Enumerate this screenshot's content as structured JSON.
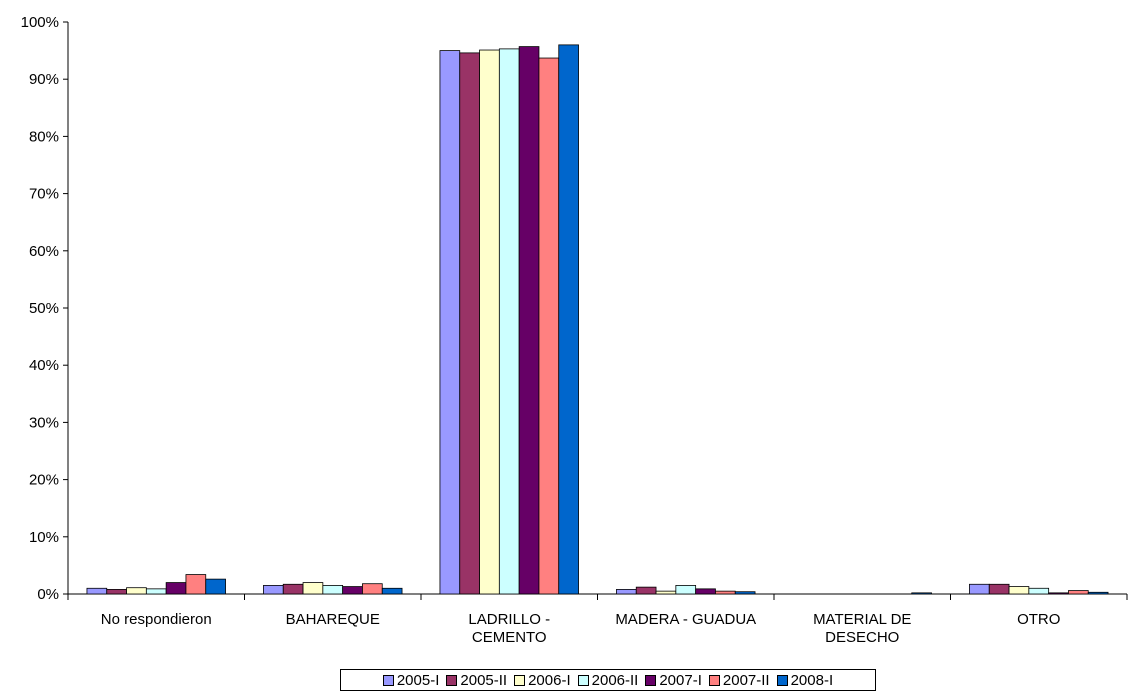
{
  "chart_data": {
    "type": "bar",
    "title": "",
    "xlabel": "",
    "ylabel": "",
    "ylim": [
      0,
      100
    ],
    "y_ticks": [
      "0%",
      "10%",
      "20%",
      "30%",
      "40%",
      "50%",
      "60%",
      "70%",
      "80%",
      "90%",
      "100%"
    ],
    "categories": [
      [
        "No respondieron"
      ],
      [
        "BAHAREQUE"
      ],
      [
        "LADRILLO -",
        "CEMENTO"
      ],
      [
        "MADERA - GUADUA"
      ],
      [
        "MATERIAL DE",
        "DESECHO"
      ],
      [
        "OTRO"
      ]
    ],
    "series": [
      {
        "name": "2005-I",
        "color": "#9999ff",
        "values": [
          1.0,
          1.5,
          95.0,
          0.8,
          0.0,
          1.7
        ]
      },
      {
        "name": "2005-II",
        "color": "#993366",
        "values": [
          0.8,
          1.7,
          94.6,
          1.2,
          0.0,
          1.7
        ]
      },
      {
        "name": "2006-I",
        "color": "#ffffcc",
        "values": [
          1.1,
          2.0,
          95.1,
          0.5,
          0.0,
          1.3
        ]
      },
      {
        "name": "2006-II",
        "color": "#ccffff",
        "values": [
          0.9,
          1.5,
          95.3,
          1.5,
          0.0,
          1.0
        ]
      },
      {
        "name": "2007-I",
        "color": "#660066",
        "values": [
          2.0,
          1.3,
          95.7,
          0.9,
          0.0,
          0.2
        ]
      },
      {
        "name": "2007-II",
        "color": "#ff8080",
        "values": [
          3.4,
          1.8,
          93.7,
          0.5,
          0.0,
          0.6
        ]
      },
      {
        "name": "2008-I",
        "color": "#0066cc",
        "values": [
          2.6,
          1.0,
          96.0,
          0.4,
          0.2,
          0.3
        ]
      }
    ],
    "grid": false,
    "legend": "bottom"
  }
}
